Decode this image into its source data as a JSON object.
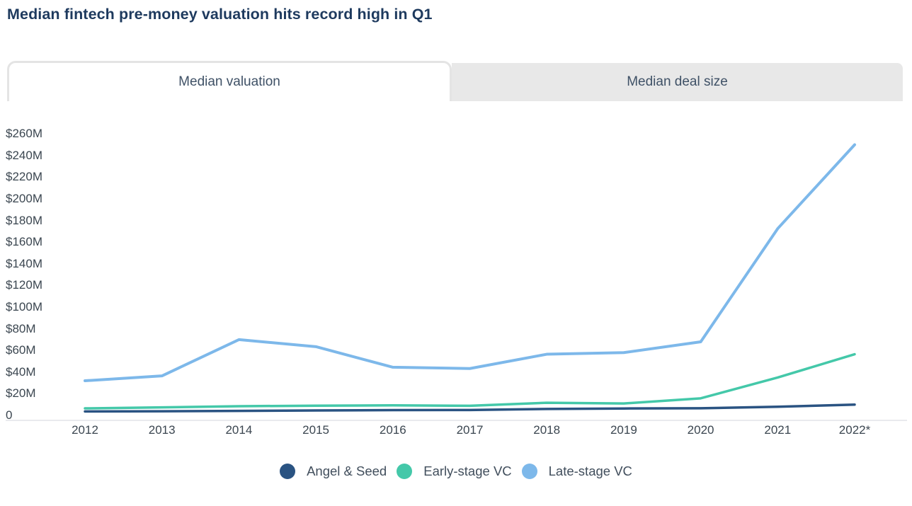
{
  "header": {
    "title": "Median fintech pre-money valuation hits record high in Q1"
  },
  "tabs": [
    {
      "label": "Median valuation",
      "active": true
    },
    {
      "label": "Median deal size",
      "active": false
    }
  ],
  "chart_data": {
    "type": "line",
    "title": "Median valuation",
    "unit": "USD millions",
    "categories": [
      "2012",
      "2013",
      "2014",
      "2015",
      "2016",
      "2017",
      "2018",
      "2019",
      "2020",
      "2021",
      "2022*"
    ],
    "ylim": [
      0,
      260
    ],
    "y_tick_step": 20,
    "y_tick_labels": [
      "0",
      "$20M",
      "$40M",
      "$60M",
      "$80M",
      "$100M",
      "$120M",
      "$140M",
      "$160M",
      "$180M",
      "$200M",
      "$220M",
      "$240M",
      "$260M"
    ],
    "grid": false,
    "legend_position": "bottom",
    "series": [
      {
        "name": "Angel & Seed",
        "color": "#2a5382",
        "values": [
          3.7,
          3.8,
          4.2,
          4.6,
          4.9,
          5.0,
          6.0,
          6.4,
          6.6,
          8.0,
          10.0
        ]
      },
      {
        "name": "Early-stage VC",
        "color": "#44c8a9",
        "values": [
          6.5,
          7.4,
          8.5,
          9.0,
          9.3,
          8.9,
          11.7,
          11.0,
          15.8,
          35.0,
          56.5
        ]
      },
      {
        "name": "Late-stage VC",
        "color": "#7db8ea",
        "values": [
          32.0,
          36.5,
          70.0,
          63.5,
          44.5,
          43.3,
          56.5,
          58.0,
          68.0,
          172.5,
          250.0
        ]
      }
    ],
    "axis_line_color": "#e2e4e9"
  }
}
